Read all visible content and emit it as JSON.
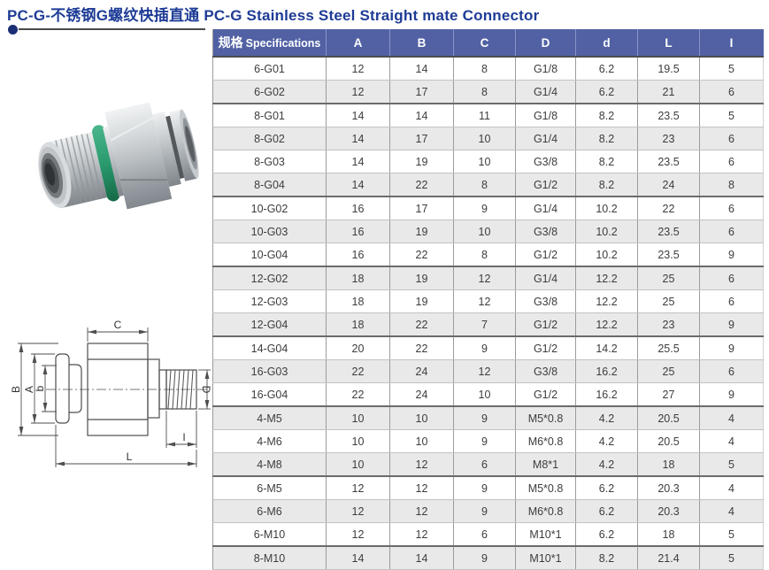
{
  "title": {
    "cn": "PC-G-不锈钢G螺纹快插直通",
    "en": "PC-G Stainless Steel Straight mate Connector"
  },
  "table": {
    "spec_header": {
      "cn": "规格",
      "en": "Specifications"
    },
    "columns": [
      "A",
      "B",
      "C",
      "D",
      "d",
      "L",
      "I"
    ],
    "rows": [
      {
        "spec": "6-G01",
        "values": [
          "12",
          "14",
          "8",
          "G1/8",
          "6.2",
          "19.5",
          "5"
        ]
      },
      {
        "spec": "6-G02",
        "values": [
          "12",
          "17",
          "8",
          "G1/4",
          "6.2",
          "21",
          "6"
        ]
      },
      {
        "spec": "8-G01",
        "values": [
          "14",
          "14",
          "11",
          "G1/8",
          "8.2",
          "23.5",
          "5"
        ]
      },
      {
        "spec": "8-G02",
        "values": [
          "14",
          "17",
          "10",
          "G1/4",
          "8.2",
          "23",
          "6"
        ]
      },
      {
        "spec": "8-G03",
        "values": [
          "14",
          "19",
          "10",
          "G3/8",
          "8.2",
          "23.5",
          "6"
        ]
      },
      {
        "spec": "8-G04",
        "values": [
          "14",
          "22",
          "8",
          "G1/2",
          "8.2",
          "24",
          "8"
        ]
      },
      {
        "spec": "10-G02",
        "values": [
          "16",
          "17",
          "9",
          "G1/4",
          "10.2",
          "22",
          "6"
        ]
      },
      {
        "spec": "10-G03",
        "values": [
          "16",
          "19",
          "10",
          "G3/8",
          "10.2",
          "23.5",
          "6"
        ]
      },
      {
        "spec": "10-G04",
        "values": [
          "16",
          "22",
          "8",
          "G1/2",
          "10.2",
          "23.5",
          "9"
        ]
      },
      {
        "spec": "12-G02",
        "values": [
          "18",
          "19",
          "12",
          "G1/4",
          "12.2",
          "25",
          "6"
        ]
      },
      {
        "spec": "12-G03",
        "values": [
          "18",
          "19",
          "12",
          "G3/8",
          "12.2",
          "25",
          "6"
        ]
      },
      {
        "spec": "12-G04",
        "values": [
          "18",
          "22",
          "7",
          "G1/2",
          "12.2",
          "23",
          "9"
        ]
      },
      {
        "spec": "14-G04",
        "values": [
          "20",
          "22",
          "9",
          "G1/2",
          "14.2",
          "25.5",
          "9"
        ]
      },
      {
        "spec": "16-G03",
        "values": [
          "22",
          "24",
          "12",
          "G3/8",
          "16.2",
          "25",
          "6"
        ]
      },
      {
        "spec": "16-G04",
        "values": [
          "22",
          "24",
          "10",
          "G1/2",
          "16.2",
          "27",
          "9"
        ]
      },
      {
        "spec": "4-M5",
        "values": [
          "10",
          "10",
          "9",
          "M5*0.8",
          "4.2",
          "20.5",
          "4"
        ]
      },
      {
        "spec": "4-M6",
        "values": [
          "10",
          "10",
          "9",
          "M6*0.8",
          "4.2",
          "20.5",
          "4"
        ]
      },
      {
        "spec": "4-M8",
        "values": [
          "10",
          "12",
          "6",
          "M8*1",
          "4.2",
          "18",
          "5"
        ]
      },
      {
        "spec": "6-M5",
        "values": [
          "12",
          "12",
          "9",
          "M5*0.8",
          "6.2",
          "20.3",
          "4"
        ]
      },
      {
        "spec": "6-M6",
        "values": [
          "12",
          "12",
          "9",
          "M6*0.8",
          "6.2",
          "20.3",
          "4"
        ]
      },
      {
        "spec": "6-M10",
        "values": [
          "12",
          "12",
          "6",
          "M10*1",
          "6.2",
          "18",
          "5"
        ]
      },
      {
        "spec": "8-M10",
        "values": [
          "14",
          "14",
          "9",
          "M10*1",
          "8.2",
          "21.4",
          "5"
        ]
      }
    ],
    "group_end_specs": [
      "6-G02",
      "8-G04",
      "10-G04",
      "12-G04",
      "16-G04",
      "4-M8",
      "6-M10"
    ]
  },
  "drawing": {
    "dim_c": "C",
    "dim_b_outer": "B",
    "dim_a": "A",
    "dim_b_inner": "b",
    "dim_d": "D",
    "dim_i": "I",
    "dim_l": "L"
  },
  "colors": {
    "title": "#1e3c96",
    "header_bg": "#5161a4",
    "header_text": "#ffffff",
    "row_alt_bg": "#e9e9e9",
    "grid_line": "#9c9c9c",
    "group_line": "#6b6b6b",
    "oring_green": "#2a9a6e"
  }
}
